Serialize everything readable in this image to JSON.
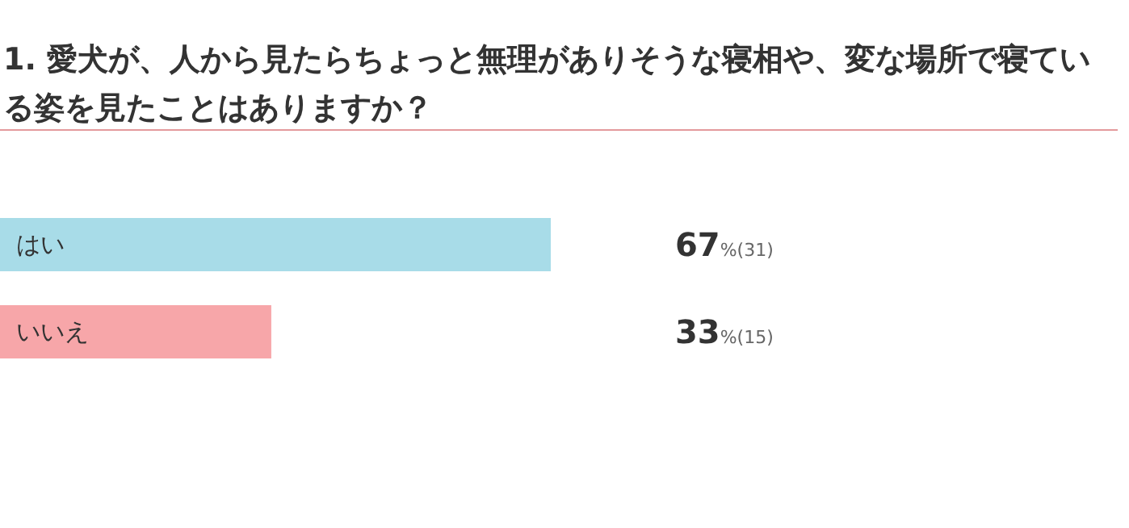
{
  "chart_data": {
    "type": "bar",
    "orientation": "horizontal",
    "title": "1. 愛犬が、人から見たらちょっと無理がありそうな寝相や、変な場所で寝ている姿を見たことはありますか？",
    "categories": [
      "はい",
      "いいえ"
    ],
    "values": [
      67,
      33
    ],
    "colors": [
      "#a8dce8",
      "#f7a6a9"
    ],
    "value_labels": [
      "67%(31)",
      "33%(15)"
    ]
  }
}
